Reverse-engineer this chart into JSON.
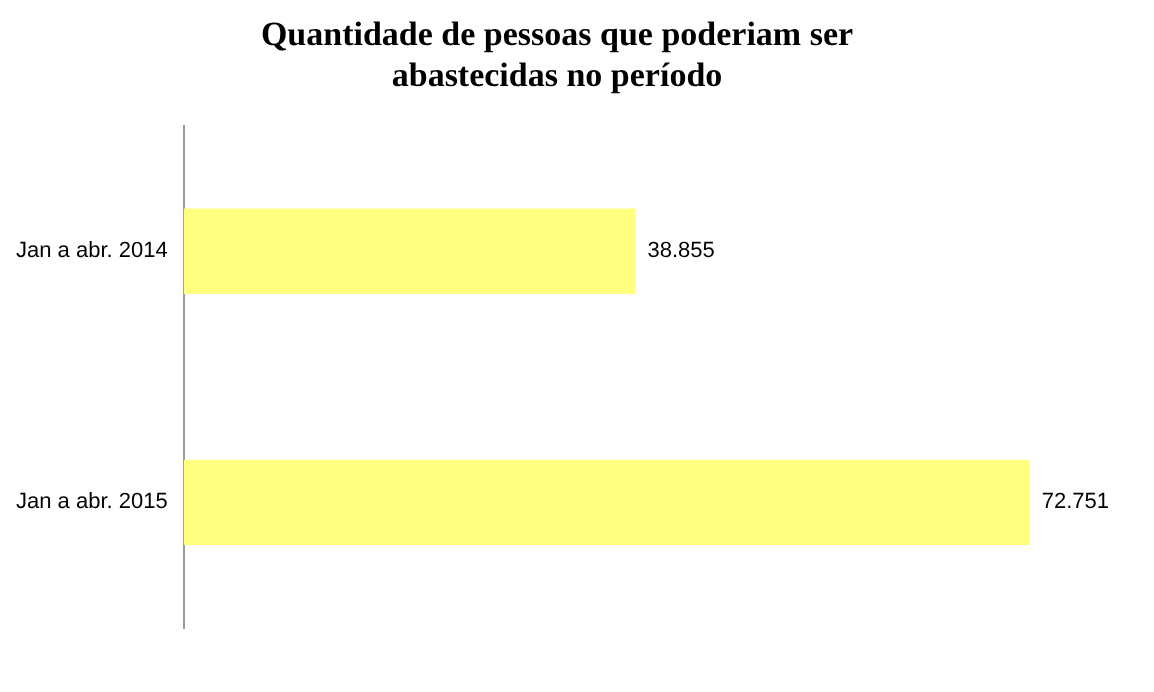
{
  "chart_data": {
    "type": "bar",
    "orientation": "horizontal",
    "title": "Quantidade de pessoas que poderiam ser abastecidas no período",
    "categories": [
      "Jan a abr. 2014",
      "Jan a abr. 2015"
    ],
    "values": [
      38855,
      72751
    ],
    "value_labels": [
      "38.855",
      "72.751"
    ],
    "color": "#ffff80",
    "tick_labels": "y",
    "grid": false,
    "legend": false
  }
}
